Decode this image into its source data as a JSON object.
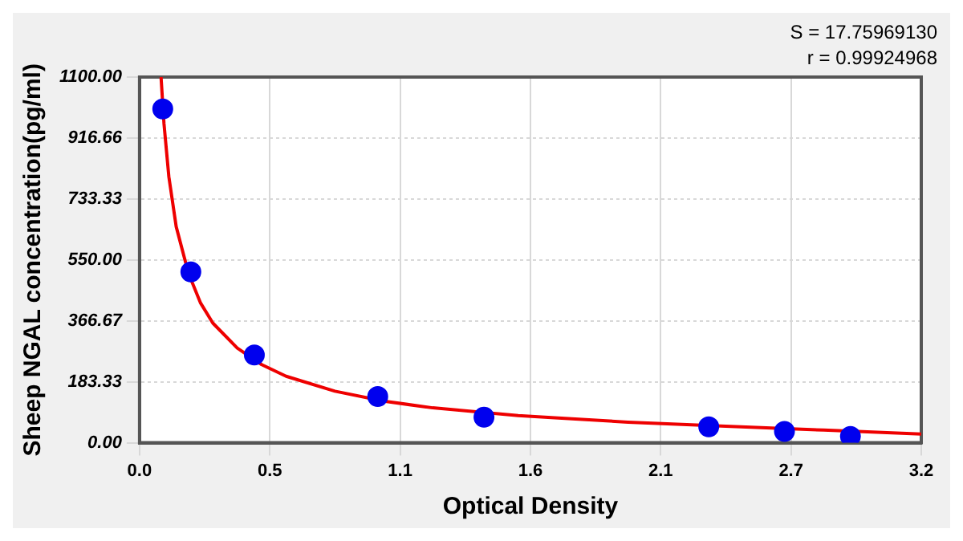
{
  "chart_data": {
    "type": "scatter",
    "xlabel": "Optical Density",
    "ylabel": "Sheep NGAL concentration(pg/ml)",
    "annotations": [
      "S = 17.75969130",
      "r = 0.99924968"
    ],
    "xlim": [
      0,
      3.2
    ],
    "xticks": [
      {
        "value": 0,
        "label": "0.0"
      },
      {
        "value": 0.5333,
        "label": "0.5"
      },
      {
        "value": 1.0667,
        "label": "1.1"
      },
      1.6,
      {
        "value": 2.1333,
        "label": "2.1"
      },
      {
        "value": 2.6667,
        "label": "2.7"
      },
      3.2
    ],
    "ylim": [
      0,
      1100
    ],
    "yticks": [
      {
        "value": 0,
        "label": "0.00"
      },
      {
        "value": 183.33,
        "label": "183.33"
      },
      {
        "value": 366.67,
        "label": "366.67"
      },
      {
        "value": 550,
        "label": "550.00"
      },
      {
        "value": 733.33,
        "label": "733.33"
      },
      {
        "value": 916.66,
        "label": "916.66"
      },
      {
        "value": 1100,
        "label": "1100.00"
      }
    ],
    "grid": true,
    "marker": "circle",
    "series": [
      {
        "color": "#0000ee",
        "x": [
          0.095,
          0.21,
          0.47,
          0.975,
          1.41,
          2.33,
          2.64,
          2.91
        ],
        "values": [
          1004,
          514,
          264,
          139,
          77,
          48,
          34,
          19
        ]
      },
      {
        "type": "line",
        "color": "#ee0000",
        "marker": "none",
        "x": [
          0.088,
          0.1,
          0.12,
          0.15,
          0.2,
          0.25,
          0.3,
          0.4,
          0.5,
          0.6,
          0.8,
          1.0,
          1.2,
          1.55,
          1.7,
          2.0,
          2.4,
          2.8,
          3.2
        ],
        "values": [
          1100,
          960,
          800,
          650,
          510,
          420,
          360,
          285,
          235,
          200,
          155,
          125,
          105,
          82,
          75,
          62,
          50,
          38,
          26
        ]
      }
    ]
  }
}
